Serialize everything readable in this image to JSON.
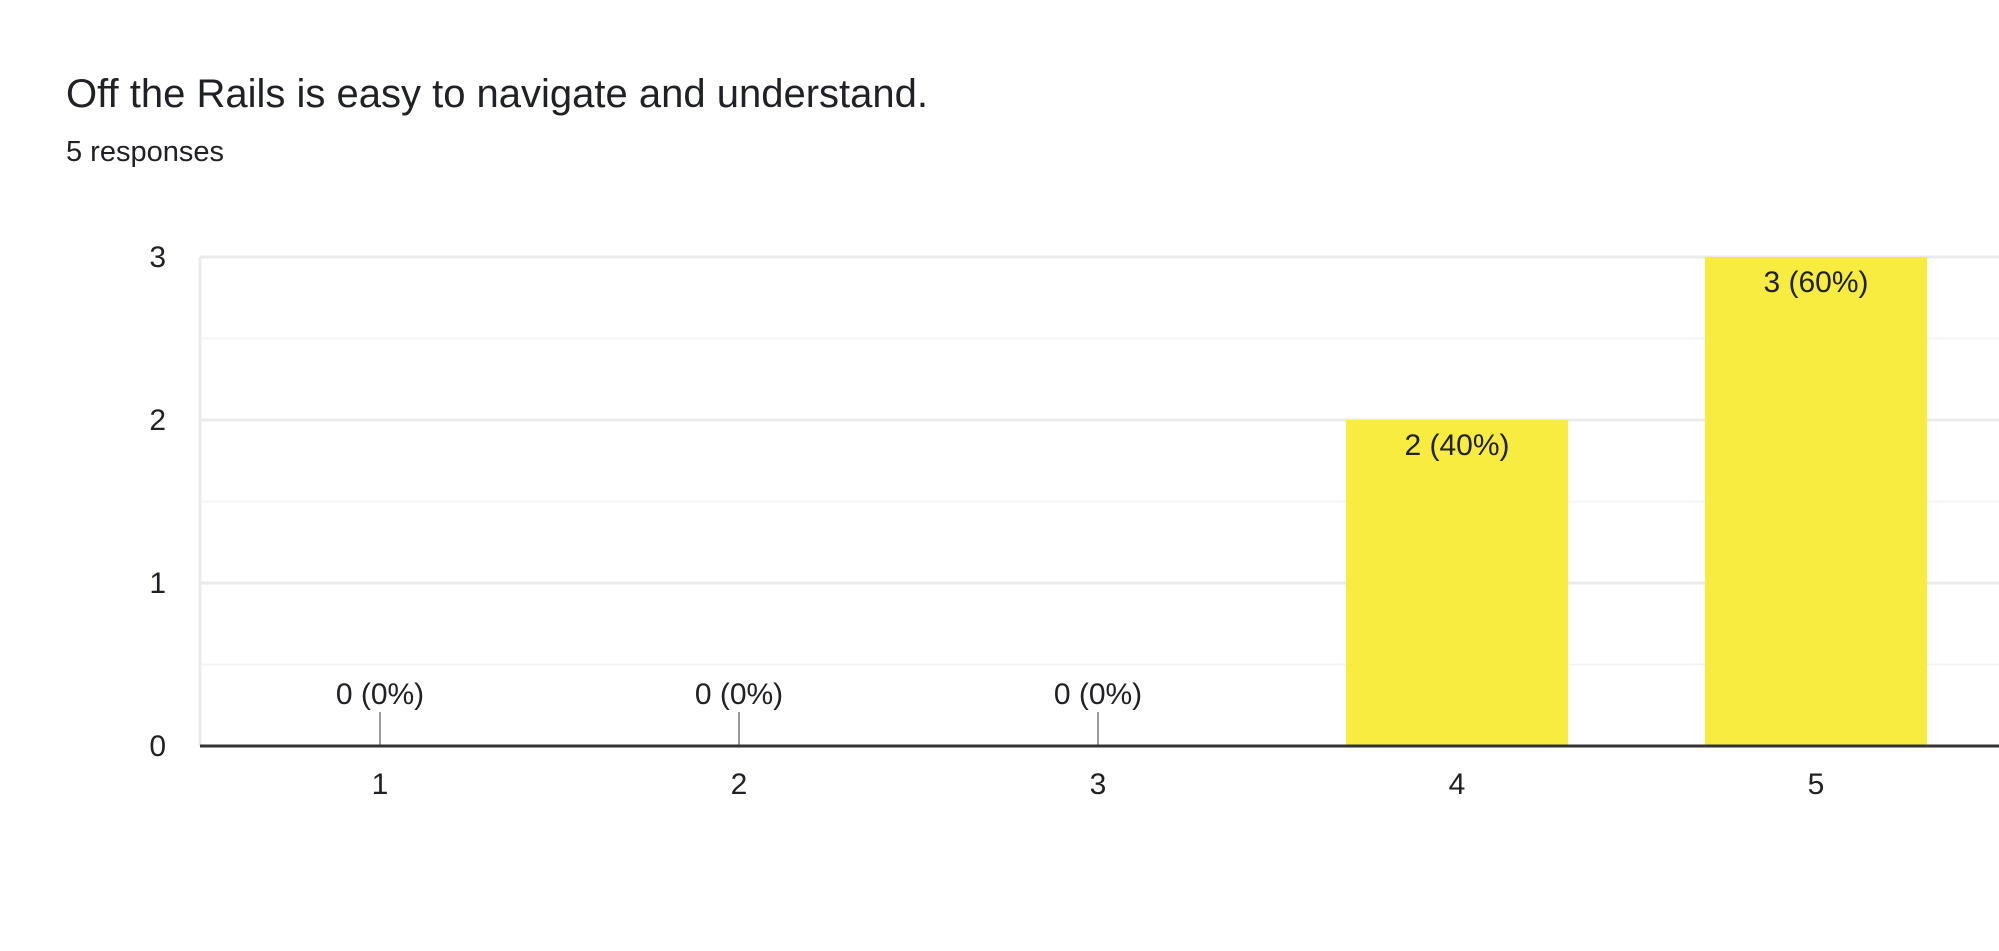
{
  "question": {
    "title": "Off the Rails is easy to navigate and understand.",
    "responses_text": "5 responses"
  },
  "colors": {
    "bar": "#f9ec41",
    "gridline": "#ebebeb",
    "axis": "#333333",
    "zero_stub": "#999999",
    "text": "#202124"
  },
  "chart_data": {
    "type": "bar",
    "title": "Off the Rails is easy to navigate and understand.",
    "subtitle": "5 responses",
    "xlabel": "",
    "ylabel": "",
    "categories": [
      "1",
      "2",
      "3",
      "4",
      "5"
    ],
    "values": [
      0,
      0,
      0,
      2,
      3
    ],
    "data_labels": [
      "0 (0%)",
      "0 (0%)",
      "0 (0%)",
      "2 (40%)",
      "3 (60%)"
    ],
    "ylim": [
      0,
      3
    ],
    "yticks": [
      0,
      1,
      2,
      3
    ],
    "minor_gridlines": [
      0.5,
      1.5,
      2.5
    ],
    "grid": true,
    "legend": "none"
  }
}
